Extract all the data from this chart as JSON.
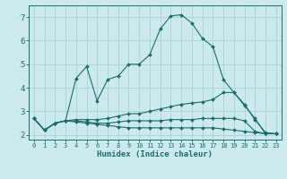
{
  "title": "",
  "xlabel": "Humidex (Indice chaleur)",
  "background_color": "#cce9ed",
  "grid_color": "#aad4d8",
  "line_color": "#1a6e6a",
  "xlim": [
    -0.5,
    23.5
  ],
  "ylim": [
    1.8,
    7.5
  ],
  "xticks": [
    0,
    1,
    2,
    3,
    4,
    5,
    6,
    7,
    8,
    9,
    10,
    11,
    12,
    13,
    14,
    15,
    16,
    17,
    18,
    19,
    20,
    21,
    22,
    23
  ],
  "yticks": [
    2,
    3,
    4,
    5,
    6,
    7
  ],
  "series": {
    "line1": {
      "x": [
        0,
        1,
        2,
        3,
        4,
        5,
        6,
        7,
        8,
        9,
        10,
        11,
        12,
        13,
        14,
        15,
        16,
        17,
        18,
        19,
        20,
        21,
        22,
        23
      ],
      "y": [
        2.7,
        2.2,
        2.5,
        2.6,
        4.4,
        4.9,
        3.45,
        4.35,
        4.5,
        5.0,
        5.0,
        5.4,
        6.5,
        7.05,
        7.1,
        6.75,
        6.1,
        5.75,
        4.35,
        3.8,
        3.25,
        2.7,
        2.05,
        2.05
      ]
    },
    "line2": {
      "x": [
        0,
        1,
        2,
        3,
        4,
        5,
        6,
        7,
        8,
        9,
        10,
        11,
        12,
        13,
        14,
        15,
        16,
        17,
        18,
        19,
        20,
        21,
        22,
        23
      ],
      "y": [
        2.7,
        2.2,
        2.5,
        2.6,
        2.65,
        2.65,
        2.65,
        2.7,
        2.8,
        2.9,
        2.9,
        3.0,
        3.1,
        3.2,
        3.3,
        3.35,
        3.4,
        3.5,
        3.8,
        3.8,
        3.3,
        2.65,
        2.1,
        2.05
      ]
    },
    "line3": {
      "x": [
        0,
        1,
        2,
        3,
        4,
        5,
        6,
        7,
        8,
        9,
        10,
        11,
        12,
        13,
        14,
        15,
        16,
        17,
        18,
        19,
        20,
        21,
        22,
        23
      ],
      "y": [
        2.7,
        2.2,
        2.5,
        2.6,
        2.6,
        2.55,
        2.5,
        2.5,
        2.55,
        2.6,
        2.6,
        2.6,
        2.6,
        2.65,
        2.65,
        2.65,
        2.7,
        2.7,
        2.7,
        2.7,
        2.6,
        2.15,
        2.05,
        2.05
      ]
    },
    "line4": {
      "x": [
        0,
        1,
        2,
        3,
        4,
        5,
        6,
        7,
        8,
        9,
        10,
        11,
        12,
        13,
        14,
        15,
        16,
        17,
        18,
        19,
        20,
        21,
        22,
        23
      ],
      "y": [
        2.7,
        2.2,
        2.5,
        2.6,
        2.55,
        2.5,
        2.45,
        2.4,
        2.35,
        2.3,
        2.3,
        2.3,
        2.3,
        2.3,
        2.3,
        2.3,
        2.3,
        2.3,
        2.25,
        2.2,
        2.15,
        2.1,
        2.05,
        2.05
      ]
    }
  }
}
